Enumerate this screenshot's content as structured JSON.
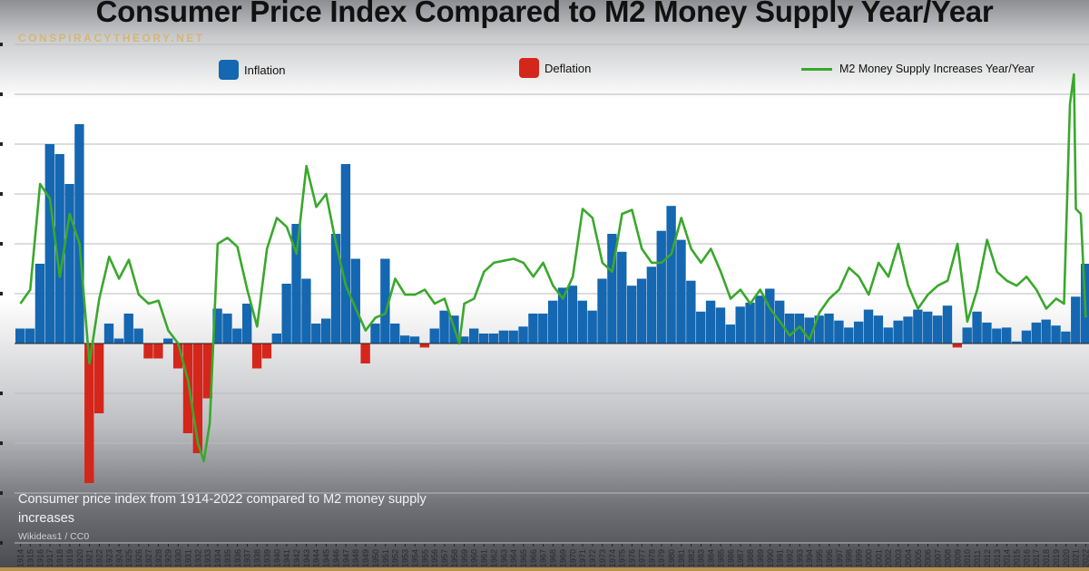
{
  "title": "Consumer Price Index Compared to M2 Money Supply Year/Year",
  "watermark": "CONSPIRACYTHEORY.NET",
  "caption": "Consumer price index from 1914-2022 compared to M2 money supply increases",
  "credit": "Wikideas1 / CC0",
  "colors": {
    "inflation": "#1467b0",
    "deflation": "#d4261b",
    "m2": "#3aa82c",
    "gold": "#b8914a"
  },
  "chart_data": {
    "type": "bar+line",
    "title": "Consumer Price Index Compared to M2 Money Supply Year/Year",
    "legend": [
      "Inflation",
      "Deflation",
      "M2 Money Supply Increases Year/Year"
    ],
    "legend_placement": "top",
    "grid": true,
    "ylim": [
      -20,
      30
    ],
    "x_range": [
      1914,
      2022
    ],
    "cpi": {
      "years": [
        1914,
        1915,
        1916,
        1917,
        1918,
        1919,
        1920,
        1921,
        1922,
        1923,
        1924,
        1925,
        1926,
        1927,
        1928,
        1929,
        1930,
        1931,
        1932,
        1933,
        1934,
        1935,
        1936,
        1937,
        1938,
        1939,
        1940,
        1941,
        1942,
        1943,
        1944,
        1945,
        1946,
        1947,
        1948,
        1949,
        1950,
        1951,
        1952,
        1953,
        1954,
        1955,
        1956,
        1957,
        1958,
        1959,
        1960,
        1961,
        1962,
        1963,
        1964,
        1965,
        1966,
        1967,
        1968,
        1969,
        1970,
        1971,
        1972,
        1973,
        1974,
        1975,
        1976,
        1977,
        1978,
        1979,
        1980,
        1981,
        1982,
        1983,
        1984,
        1985,
        1986,
        1987,
        1988,
        1989,
        1990,
        1991,
        1992,
        1993,
        1994,
        1995,
        1996,
        1997,
        1998,
        1999,
        2000,
        2001,
        2002,
        2003,
        2004,
        2005,
        2006,
        2007,
        2008,
        2009,
        2010,
        2011,
        2012,
        2013,
        2014,
        2015,
        2016,
        2017,
        2018,
        2019,
        2020,
        2021,
        2022
      ],
      "values": [
        1.5,
        1.5,
        8,
        20,
        19,
        16,
        22,
        -14,
        -7,
        2,
        0.5,
        3,
        1.5,
        -1.5,
        -1.5,
        0.5,
        -2.5,
        -9,
        -11,
        -5.5,
        3.5,
        3,
        1.5,
        4,
        -2.5,
        -1.5,
        1,
        6,
        12,
        6.5,
        2,
        2.5,
        11,
        18,
        8.5,
        -2,
        2,
        8.5,
        2,
        0.8,
        0.7,
        -0.4,
        1.5,
        3.3,
        2.8,
        0.7,
        1.5,
        1,
        1,
        1.3,
        1.3,
        1.7,
        3,
        3,
        4.3,
        5.6,
        5.8,
        4.3,
        3.3,
        6.5,
        11,
        9.2,
        5.8,
        6.5,
        7.7,
        11.3,
        13.8,
        10.4,
        6.3,
        3.2,
        4.3,
        3.6,
        1.9,
        3.7,
        4.1,
        4.8,
        5.5,
        4.3,
        3,
        3,
        2.6,
        2.8,
        3,
        2.3,
        1.6,
        2.2,
        3.4,
        2.8,
        1.6,
        2.3,
        2.7,
        3.4,
        3.2,
        2.8,
        3.8,
        -0.4,
        1.6,
        3.2,
        2.1,
        1.5,
        1.6,
        0.2,
        1.3,
        2.1,
        2.4,
        1.8,
        1.2,
        4.7,
        8.0
      ]
    },
    "m2": {
      "years": [
        1914,
        1915,
        1916,
        1917,
        1918,
        1919,
        1920,
        1921,
        1922,
        1923,
        1924,
        1925,
        1926,
        1927,
        1928,
        1929,
        1930,
        1931,
        1932,
        1932.6,
        1933.2,
        1934,
        1935,
        1936,
        1937,
        1938,
        1939,
        1940,
        1941,
        1942,
        1943,
        1944,
        1945,
        1946,
        1947,
        1948,
        1949,
        1950,
        1951,
        1952,
        1953,
        1954,
        1955,
        1956,
        1957,
        1958.5,
        1959,
        1960,
        1961,
        1962,
        1963,
        1964,
        1965,
        1966,
        1967,
        1968,
        1969,
        1970,
        1971,
        1972,
        1973,
        1974,
        1975,
        1976,
        1977,
        1978,
        1979,
        1980,
        1981,
        1982,
        1983,
        1984,
        1985,
        1986,
        1987,
        1988,
        1989,
        1990,
        1991,
        1992,
        1993,
        1994,
        1995,
        1996,
        1997,
        1998,
        1999,
        2000,
        2001,
        2002,
        2003,
        2004,
        2005,
        2006,
        2007,
        2008,
        2009,
        2010,
        2011,
        2012,
        2013,
        2014,
        2015,
        2016,
        2017,
        2018,
        2019,
        2019.8,
        2020.4,
        2020.8,
        2021,
        2021.5,
        2022
      ],
      "values": [
        4,
        5.4,
        16,
        14.5,
        6.7,
        13,
        10,
        -2,
        4.5,
        8.7,
        6.5,
        8.4,
        4.9,
        4,
        4.3,
        1.3,
        0,
        -3.7,
        -10,
        -11.8,
        -8,
        10,
        10.6,
        9.7,
        5.4,
        1.7,
        9.5,
        12.6,
        11.7,
        9,
        17.8,
        13.7,
        15,
        10,
        5.8,
        3.5,
        1.3,
        2.6,
        3,
        6.5,
        4.9,
        4.9,
        5.4,
        4,
        4.5,
        0,
        4,
        4.5,
        7.2,
        8.1,
        8.3,
        8.5,
        8.1,
        6.7,
        8.1,
        5.8,
        4.5,
        6.7,
        13.5,
        12.6,
        8.1,
        7.2,
        13,
        13.4,
        9.5,
        8.1,
        8.1,
        9,
        12.6,
        9.5,
        8.1,
        9.5,
        7.2,
        4.5,
        5.4,
        4,
        5.4,
        3.5,
        2.2,
        0.8,
        1.7,
        0.4,
        3.1,
        4.5,
        5.4,
        7.6,
        6.7,
        4.9,
        8.1,
        6.7,
        10,
        5.8,
        3.5,
        4.9,
        5.8,
        6.3,
        10,
        2.2,
        5.4,
        10.4,
        7.2,
        6.3,
        5.8,
        6.7,
        5.4,
        3.5,
        4.5,
        4,
        24,
        27,
        13.5,
        13,
        2.6
      ]
    }
  }
}
